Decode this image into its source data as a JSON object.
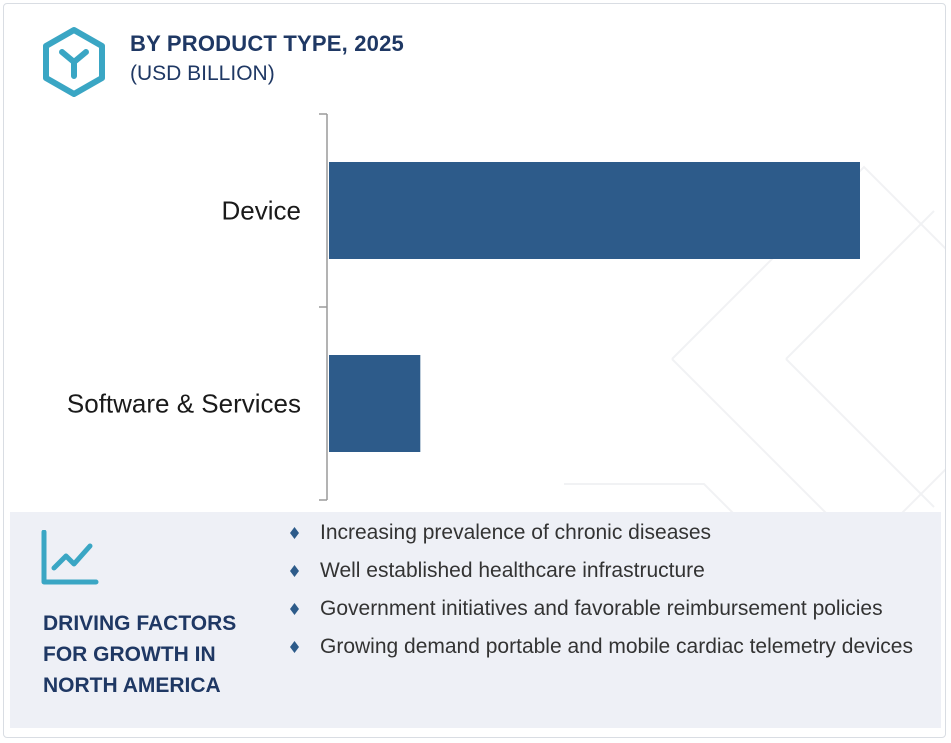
{
  "header": {
    "title": "BY PRODUCT TYPE, 2025",
    "subtitle": "(USD BILLION)",
    "logo_icon": "hexagon-y-logo-icon"
  },
  "colors": {
    "bar": "#2d5b8a",
    "title": "#1f3864",
    "accent": "#3aa6c4",
    "panel": "#eef0f6",
    "axis": "#9a9a9a",
    "bullet": "#2d5b8a"
  },
  "chart_data": {
    "type": "bar",
    "orientation": "horizontal",
    "title": "BY PRODUCT TYPE, 2025",
    "subtitle": "(USD BILLION)",
    "categories": [
      "Device",
      "Software & Services"
    ],
    "values": [
      5.35,
      0.92
    ],
    "xlim": [
      0,
      6
    ],
    "grid": false,
    "legend": "none"
  },
  "factors": {
    "icon": "line-chart-trend-icon",
    "heading_lines": [
      "DRIVING FACTORS",
      "FOR GROWTH IN",
      "NORTH AMERICA"
    ],
    "bullet_icon": "diamond-bullet-icon",
    "items": [
      "Increasing prevalence of chronic diseases",
      "Well established healthcare infrastructure",
      "Government initiatives and favorable reimbursement policies",
      "Growing demand portable and mobile cardiac telemetry devices"
    ]
  }
}
